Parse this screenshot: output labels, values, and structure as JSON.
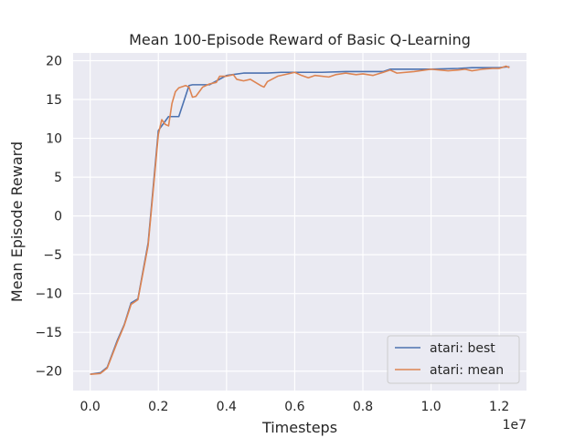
{
  "chart_data": {
    "type": "line",
    "title": "Mean 100-Episode Reward of Basic Q-Learning",
    "xlabel": "Timesteps",
    "ylabel": "Mean Episode Reward",
    "x_offset_label": "1e7",
    "xlim": [
      -0.05,
      1.28
    ],
    "ylim": [
      -22.5,
      21
    ],
    "x_ticks": [
      0.0,
      0.2,
      0.4,
      0.6,
      0.8,
      1.0,
      1.2
    ],
    "x_tick_labels": [
      "0.0",
      "0.2",
      "0.4",
      "0.6",
      "0.8",
      "1.0",
      "1.2"
    ],
    "y_ticks": [
      -20,
      -15,
      -10,
      -5,
      0,
      5,
      10,
      15,
      20
    ],
    "y_tick_labels": [
      "−20",
      "−15",
      "−10",
      "−5",
      "0",
      "5",
      "10",
      "15",
      "20"
    ],
    "grid": true,
    "legend_position": "lower-right",
    "background_color": "#eaeaf2",
    "series": [
      {
        "name": "atari: best",
        "color": "#4c72b0",
        "x": [
          0.0,
          0.03,
          0.05,
          0.08,
          0.1,
          0.12,
          0.14,
          0.17,
          0.2,
          0.23,
          0.26,
          0.29,
          0.3,
          0.35,
          0.4,
          0.45,
          0.48,
          0.52,
          0.56,
          0.62,
          0.68,
          0.75,
          0.82,
          0.86,
          0.88,
          0.95,
          1.0,
          1.08,
          1.12,
          1.15,
          1.2,
          1.22,
          1.23
        ],
        "y": [
          -20.4,
          -20.2,
          -19.5,
          -16.0,
          -14.0,
          -11.2,
          -10.7,
          -3.5,
          11.0,
          12.8,
          12.8,
          16.8,
          16.9,
          16.9,
          18.1,
          18.4,
          18.4,
          18.4,
          18.5,
          18.5,
          18.5,
          18.6,
          18.6,
          18.6,
          18.9,
          18.9,
          18.9,
          19.0,
          19.1,
          19.1,
          19.1,
          19.2,
          19.2
        ]
      },
      {
        "name": "atari: mean",
        "color": "#dd8452",
        "x": [
          0.0,
          0.03,
          0.05,
          0.08,
          0.1,
          0.12,
          0.14,
          0.17,
          0.2,
          0.21,
          0.22,
          0.23,
          0.24,
          0.25,
          0.26,
          0.28,
          0.29,
          0.3,
          0.31,
          0.33,
          0.35,
          0.37,
          0.38,
          0.4,
          0.42,
          0.43,
          0.45,
          0.47,
          0.5,
          0.51,
          0.52,
          0.55,
          0.58,
          0.6,
          0.62,
          0.64,
          0.66,
          0.7,
          0.72,
          0.75,
          0.78,
          0.8,
          0.83,
          0.86,
          0.88,
          0.9,
          0.95,
          1.0,
          1.05,
          1.08,
          1.1,
          1.12,
          1.15,
          1.18,
          1.2,
          1.22,
          1.23
        ],
        "y": [
          -20.4,
          -20.3,
          -19.6,
          -16.2,
          -14.1,
          -11.4,
          -10.8,
          -3.8,
          10.5,
          12.4,
          11.8,
          11.6,
          14.5,
          16.0,
          16.5,
          16.8,
          16.6,
          15.3,
          15.4,
          16.6,
          17.0,
          17.2,
          18.0,
          18.0,
          18.2,
          17.6,
          17.4,
          17.6,
          16.8,
          16.6,
          17.3,
          18.0,
          18.3,
          18.5,
          18.1,
          17.8,
          18.1,
          17.9,
          18.2,
          18.4,
          18.2,
          18.3,
          18.1,
          18.5,
          18.8,
          18.4,
          18.6,
          18.9,
          18.7,
          18.8,
          18.9,
          18.7,
          18.9,
          19.0,
          19.0,
          19.3,
          19.1
        ]
      }
    ]
  }
}
